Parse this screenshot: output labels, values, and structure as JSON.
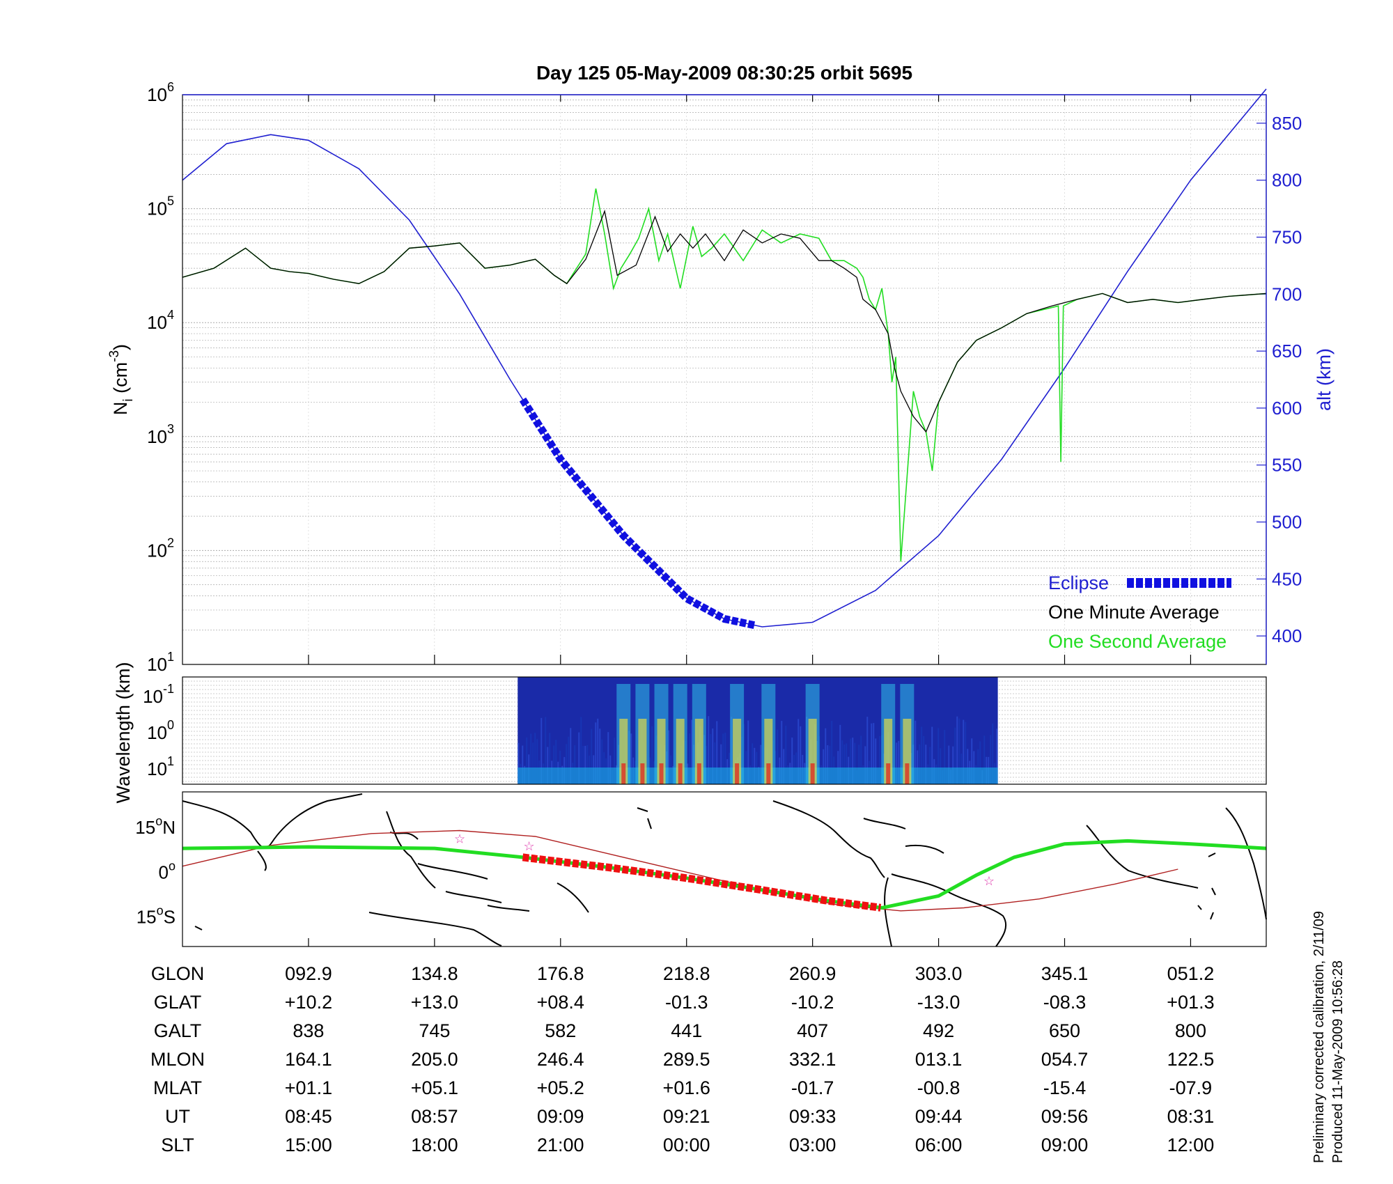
{
  "title": "Day 125  05-May-2009 08:30:25   orbit 5695",
  "colors": {
    "altitude": "#1f1fd0",
    "eclipse": "#1010e0",
    "one_minute": "#000000",
    "one_second": "#22dd22",
    "track": "#22dd22",
    "track_eclipse": "#ee1111",
    "magnetic_equator": "#b02020",
    "stars": "#dd33aa"
  },
  "chart_data": [
    {
      "type": "line",
      "panel": "ion-density",
      "ylabel": "N_i (cm^-3)",
      "ylabel_main": "N",
      "ylabel_sub": "i",
      "ylabel_unit": "(cm",
      "ylabel_exp": "-3",
      "ylabel_close": ")",
      "y_scale": "log",
      "ylim": [
        10,
        1000000
      ],
      "y_ticks": [
        {
          "base": "10",
          "exp": "1"
        },
        {
          "base": "10",
          "exp": "2"
        },
        {
          "base": "10",
          "exp": "3"
        },
        {
          "base": "10",
          "exp": "4"
        },
        {
          "base": "10",
          "exp": "5"
        },
        {
          "base": "10",
          "exp": "6"
        }
      ],
      "y_tick_values": [
        10,
        100,
        1000,
        10000,
        100000,
        1000000
      ],
      "y2label": "alt (km)",
      "y2lim": [
        375,
        875
      ],
      "y2_ticks": [
        "400",
        "450",
        "500",
        "550",
        "600",
        "650",
        "700",
        "750",
        "800",
        "850"
      ],
      "x_positions": [
        0,
        1,
        2,
        3,
        4,
        5,
        6,
        7,
        8
      ],
      "x_tick_positions": [
        1,
        2,
        3,
        4,
        5,
        6,
        7,
        8
      ],
      "xlim": [
        0,
        8.6
      ],
      "grid": true,
      "legend_position": "bottom-right",
      "legend": [
        "Eclipse",
        "One Minute Average",
        "One Second Average"
      ],
      "series": [
        {
          "name": "One Minute Average",
          "axis": "left",
          "x": [
            0,
            0.25,
            0.5,
            0.7,
            0.85,
            1.0,
            1.2,
            1.4,
            1.6,
            1.8,
            2.0,
            2.2,
            2.4,
            2.6,
            2.7,
            2.8,
            2.95,
            3.05,
            3.2,
            3.35,
            3.45,
            3.6,
            3.75,
            3.85,
            3.95,
            4.05,
            4.15,
            4.3,
            4.45,
            4.6,
            4.75,
            4.9,
            5.05,
            5.15,
            5.25,
            5.35,
            5.4,
            5.5,
            5.6,
            5.65,
            5.7,
            5.8,
            5.9,
            6.0,
            6.15,
            6.3,
            6.5,
            6.7,
            6.9,
            7.1,
            7.3,
            7.5,
            7.7,
            7.9,
            8.1,
            8.3,
            8.6
          ],
          "y": [
            25000,
            30000,
            45000,
            30000,
            28000,
            27000,
            24000,
            22000,
            28000,
            45000,
            47000,
            50000,
            30000,
            32000,
            34000,
            36000,
            26000,
            22000,
            36000,
            95000,
            26000,
            32000,
            85000,
            42000,
            60000,
            45000,
            60000,
            35000,
            65000,
            50000,
            60000,
            55000,
            35000,
            35000,
            30000,
            25000,
            16000,
            13000,
            8000,
            4000,
            2500,
            1500,
            1100,
            2000,
            4500,
            7000,
            9000,
            12000,
            14000,
            16000,
            18000,
            15000,
            16000,
            15000,
            16000,
            17000,
            18000
          ]
        },
        {
          "name": "One Second Average",
          "axis": "left",
          "x": [
            0,
            0.25,
            0.5,
            0.7,
            0.85,
            1.0,
            1.2,
            1.4,
            1.6,
            1.8,
            2.0,
            2.2,
            2.4,
            2.6,
            2.7,
            2.8,
            2.95,
            3.05,
            3.2,
            3.28,
            3.35,
            3.42,
            3.48,
            3.55,
            3.62,
            3.7,
            3.78,
            3.85,
            3.95,
            4.05,
            4.12,
            4.2,
            4.3,
            4.45,
            4.6,
            4.75,
            4.9,
            5.05,
            5.15,
            5.25,
            5.35,
            5.4,
            5.45,
            5.5,
            5.55,
            5.6,
            5.63,
            5.66,
            5.7,
            5.8,
            5.85,
            5.9,
            5.95,
            6.0,
            6.15,
            6.3,
            6.5,
            6.7,
            6.95,
            6.97,
            6.99,
            7.1,
            7.3,
            7.5,
            7.7,
            7.9,
            8.1,
            8.3,
            8.6
          ],
          "y": [
            25000,
            30000,
            45000,
            30000,
            28000,
            27000,
            24000,
            22000,
            28000,
            45000,
            47000,
            50000,
            30000,
            32000,
            34000,
            36000,
            26000,
            22000,
            40000,
            150000,
            60000,
            20000,
            30000,
            40000,
            55000,
            100000,
            35000,
            60000,
            20000,
            70000,
            38000,
            45000,
            60000,
            35000,
            65000,
            50000,
            60000,
            55000,
            35000,
            35000,
            30000,
            25000,
            16000,
            13000,
            20000,
            8000,
            3000,
            5000,
            80,
            2500,
            1500,
            1100,
            500,
            2000,
            4500,
            7000,
            9000,
            12000,
            14000,
            600,
            14000,
            16000,
            18000,
            15000,
            16000,
            15000,
            16000,
            17000,
            18000
          ]
        },
        {
          "name": "Altitude",
          "axis": "right",
          "x": [
            0,
            0.35,
            0.7,
            1.0,
            1.4,
            1.8,
            2.2,
            2.6,
            3.0,
            3.5,
            4.0,
            4.3,
            4.6,
            5.0,
            5.5,
            6.0,
            6.5,
            7.0,
            7.5,
            8.0,
            8.6
          ],
          "y": [
            800,
            832,
            840,
            835,
            810,
            765,
            700,
            625,
            555,
            488,
            433,
            415,
            408,
            412,
            440,
            488,
            555,
            635,
            720,
            800,
            880
          ]
        },
        {
          "name": "Eclipse",
          "axis": "right",
          "x_range": [
            2.7,
            4.55
          ]
        }
      ]
    },
    {
      "type": "heatmap",
      "panel": "spectrogram",
      "ylabel": "Wavelength (km)",
      "y_ticks": [
        {
          "base": "10",
          "exp": "-1"
        },
        {
          "base": "10",
          "exp": "0"
        },
        {
          "base": "10",
          "exp": "1"
        }
      ],
      "x_range": [
        2.66,
        6.47
      ],
      "bright_bands_x": [
        3.5,
        3.65,
        3.8,
        3.95,
        4.1,
        4.4,
        4.65,
        5.0,
        5.6,
        5.75
      ]
    },
    {
      "type": "map",
      "panel": "ground-track",
      "y_ticks": [
        {
          "deg": "15",
          "sup": "o",
          "hem": "N"
        },
        {
          "deg": "0",
          "sup": "o",
          "hem": ""
        },
        {
          "deg": "15",
          "sup": "o",
          "hem": "S"
        }
      ],
      "ylim": [
        -25,
        27
      ],
      "track": {
        "x": [
          0,
          1.0,
          2.0,
          2.7,
          3.4,
          4.0,
          4.6,
          5.1,
          5.55,
          6.0,
          6.3,
          6.6,
          7.0,
          7.5,
          8.0,
          8.6
        ],
        "lat": [
          8,
          8.5,
          8,
          5,
          1.5,
          -2,
          -6,
          -9.5,
          -12,
          -8,
          -1,
          5,
          9.5,
          10.5,
          9.5,
          8
        ]
      },
      "track_eclipse_range": [
        2.7,
        5.55
      ],
      "magnetic_equator": {
        "x": [
          0,
          0.7,
          1.5,
          2.2,
          2.8,
          3.4,
          4.0,
          4.6,
          5.2,
          5.7,
          6.2,
          6.8,
          7.4,
          7.9
        ],
        "lat": [
          2,
          9,
          13,
          14,
          12,
          6,
          0,
          -6,
          -11,
          -13,
          -12,
          -9,
          -4,
          1
        ]
      },
      "stars_x": [
        2.2,
        2.75,
        6.4
      ]
    }
  ],
  "table": {
    "row_labels": [
      "GLON",
      "GLAT",
      "GALT",
      "MLON",
      "MLAT",
      "UT",
      "SLT"
    ],
    "columns": [
      [
        "092.9",
        "+10.2",
        "838",
        "164.1",
        "+01.1",
        "08:45",
        "15:00"
      ],
      [
        "134.8",
        "+13.0",
        "745",
        "205.0",
        "+05.1",
        "08:57",
        "18:00"
      ],
      [
        "176.8",
        "+08.4",
        "582",
        "246.4",
        "+05.2",
        "09:09",
        "21:00"
      ],
      [
        "218.8",
        "-01.3",
        "441",
        "289.5",
        "+01.6",
        "09:21",
        "00:00"
      ],
      [
        "260.9",
        "-10.2",
        "407",
        "332.1",
        "-01.7",
        "09:33",
        "03:00"
      ],
      [
        "303.0",
        "-13.0",
        "492",
        "013.1",
        "-00.8",
        "09:44",
        "06:00"
      ],
      [
        "345.1",
        "-08.3",
        "650",
        "054.7",
        "-15.4",
        "09:56",
        "09:00"
      ],
      [
        "051.2",
        "+01.3",
        "800",
        "122.5",
        "-07.9",
        "08:31",
        "12:00"
      ]
    ]
  },
  "footnote": {
    "line1": "Preliminary corrected calibration, 2/11/09",
    "line2": "Produced 11-May-2009 10:56:28"
  }
}
